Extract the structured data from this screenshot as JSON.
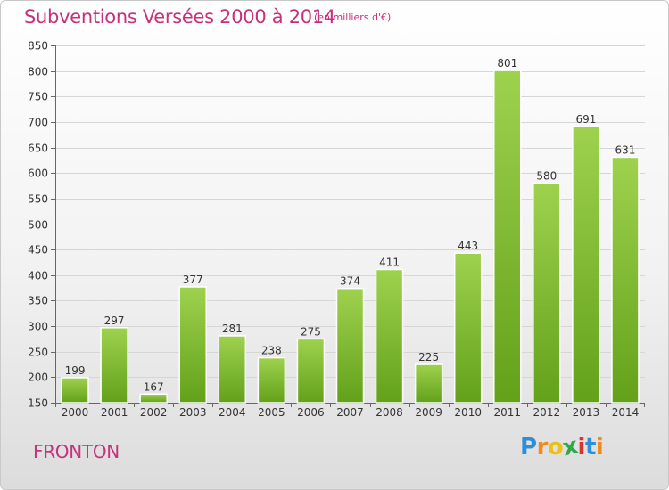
{
  "chart_data": {
    "type": "bar",
    "title": "Subventions Versées 2000 à 2014",
    "subtitle": "(en milliers d'€)",
    "categories": [
      "2000",
      "2001",
      "2002",
      "2003",
      "2004",
      "2005",
      "2006",
      "2007",
      "2008",
      "2009",
      "2010",
      "2011",
      "2012",
      "2013",
      "2014"
    ],
    "values": [
      199,
      297,
      167,
      377,
      281,
      238,
      275,
      374,
      411,
      225,
      443,
      801,
      580,
      691,
      631
    ],
    "ylim": [
      150,
      850
    ],
    "yticks": [
      150,
      200,
      250,
      300,
      350,
      400,
      450,
      500,
      550,
      600,
      650,
      700,
      750,
      800,
      850
    ],
    "grid": true,
    "bar_color": "#7fbf2e",
    "accent_color": "#c7317c"
  },
  "footer": {
    "city": "FRONTON",
    "logo_letters": [
      {
        "ch": "P",
        "color": "#2e8fd8"
      },
      {
        "ch": "r",
        "color": "#f08a1c"
      },
      {
        "ch": "o",
        "color": "#e8c21a"
      },
      {
        "ch": "x",
        "color": "#2ea84a"
      },
      {
        "ch": "i",
        "color": "#d8322c"
      },
      {
        "ch": "t",
        "color": "#2e8fd8"
      },
      {
        "ch": "i",
        "color": "#f08a1c"
      }
    ]
  }
}
